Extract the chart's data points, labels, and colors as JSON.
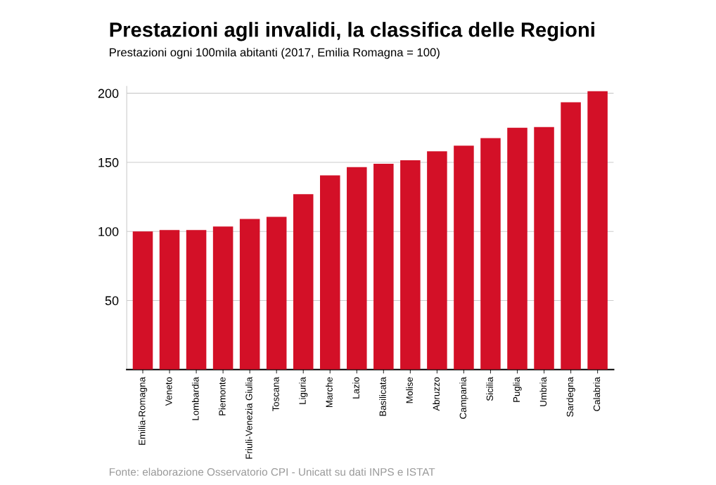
{
  "chart_data": {
    "type": "bar",
    "title": "Prestazioni agli invalidi, la classifica delle Regioni",
    "subtitle": "Prestazioni ogni 100mila abitanti (2017, Emilia Romagna = 100)",
    "categories": [
      "Emilia-Romagna",
      "Veneto",
      "Lombardia",
      "Piemonte",
      "Friuli-Venezia Giulia",
      "Toscana",
      "Liguria",
      "Marche",
      "Lazio",
      "Basilicata",
      "Molise",
      "Abruzzo",
      "Campania",
      "Sicilia",
      "Puglia",
      "Umbria",
      "Sardegna",
      "Calabria"
    ],
    "values": [
      100,
      101,
      101,
      103.5,
      109,
      110.5,
      127,
      140.5,
      146.5,
      149,
      151.5,
      158,
      162,
      167.5,
      175,
      175.5,
      193.5,
      201.5
    ],
    "color": "#d31027",
    "ylim": [
      0,
      205
    ],
    "yticks": [
      50,
      100,
      150,
      200
    ],
    "grid": "y",
    "annotations": [
      "Fonte: elaborazione Osservatorio CPI - Unicatt su dati INPS e ISTAT"
    ]
  }
}
